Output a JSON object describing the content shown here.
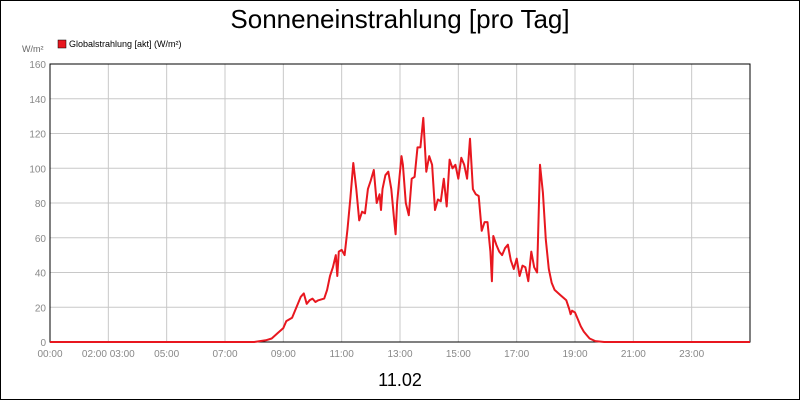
{
  "chart_data": {
    "type": "line",
    "title": "Sonneneinstrahlung [pro Tag]",
    "date_label": "11.02",
    "y_unit": "W/m²",
    "legend": [
      {
        "label": "Globalstrahlung [akt] (W/m²)",
        "color": "#e8171f"
      }
    ],
    "ylim": [
      0,
      160
    ],
    "yticks": [
      0,
      20,
      40,
      60,
      80,
      100,
      120,
      140,
      160
    ],
    "xlim": [
      0,
      24
    ],
    "xtick_labels": [
      "00:00",
      "02:00 03:00",
      "05:00",
      "07:00",
      "09:00",
      "11:00",
      "13:00",
      "15:00",
      "17:00",
      "19:00",
      "21:00",
      "23:00"
    ],
    "grid": true,
    "series": [
      {
        "name": "Globalstrahlung [akt] (W/m²)",
        "color": "#e8171f",
        "points": [
          [
            0.0,
            0
          ],
          [
            7.0,
            0
          ],
          [
            7.2,
            0.5
          ],
          [
            7.4,
            1
          ],
          [
            7.6,
            2
          ],
          [
            7.8,
            5
          ],
          [
            8.0,
            8
          ],
          [
            8.1,
            12
          ],
          [
            8.3,
            14
          ],
          [
            8.4,
            18
          ],
          [
            8.5,
            22
          ],
          [
            8.6,
            26
          ],
          [
            8.7,
            28
          ],
          [
            8.8,
            22
          ],
          [
            8.9,
            24
          ],
          [
            9.0,
            25
          ],
          [
            9.1,
            23
          ],
          [
            9.2,
            24
          ],
          [
            9.4,
            25
          ],
          [
            9.5,
            30
          ],
          [
            9.6,
            38
          ],
          [
            9.7,
            43
          ],
          [
            9.8,
            50
          ],
          [
            9.85,
            38
          ],
          [
            9.9,
            52
          ],
          [
            10.0,
            53
          ],
          [
            10.1,
            50
          ],
          [
            10.2,
            65
          ],
          [
            10.3,
            83
          ],
          [
            10.4,
            103
          ],
          [
            10.5,
            88
          ],
          [
            10.6,
            70
          ],
          [
            10.7,
            75
          ],
          [
            10.8,
            74
          ],
          [
            10.9,
            88
          ],
          [
            11.0,
            93
          ],
          [
            11.1,
            99
          ],
          [
            11.2,
            80
          ],
          [
            11.3,
            85
          ],
          [
            11.35,
            76
          ],
          [
            11.4,
            88
          ],
          [
            11.5,
            96
          ],
          [
            11.6,
            98
          ],
          [
            11.7,
            88
          ],
          [
            11.8,
            70
          ],
          [
            11.85,
            62
          ],
          [
            11.9,
            80
          ],
          [
            12.0,
            98
          ],
          [
            12.05,
            107
          ],
          [
            12.1,
            102
          ],
          [
            12.2,
            80
          ],
          [
            12.3,
            73
          ],
          [
            12.4,
            94
          ],
          [
            12.5,
            95
          ],
          [
            12.6,
            112
          ],
          [
            12.7,
            112
          ],
          [
            12.8,
            129
          ],
          [
            12.9,
            98
          ],
          [
            13.0,
            107
          ],
          [
            13.1,
            102
          ],
          [
            13.2,
            76
          ],
          [
            13.3,
            82
          ],
          [
            13.4,
            81
          ],
          [
            13.5,
            94
          ],
          [
            13.6,
            78
          ],
          [
            13.7,
            105
          ],
          [
            13.8,
            100
          ],
          [
            13.9,
            102
          ],
          [
            14.0,
            94
          ],
          [
            14.1,
            106
          ],
          [
            14.2,
            102
          ],
          [
            14.3,
            94
          ],
          [
            14.4,
            117
          ],
          [
            14.5,
            88
          ],
          [
            14.6,
            85
          ],
          [
            14.7,
            84
          ],
          [
            14.8,
            64
          ],
          [
            14.9,
            69
          ],
          [
            15.0,
            69
          ],
          [
            15.1,
            52
          ],
          [
            15.15,
            35
          ],
          [
            15.2,
            61
          ],
          [
            15.3,
            56
          ],
          [
            15.4,
            52
          ],
          [
            15.5,
            50
          ],
          [
            15.6,
            54
          ],
          [
            15.7,
            56
          ],
          [
            15.8,
            47
          ],
          [
            15.9,
            42
          ],
          [
            16.0,
            48
          ],
          [
            16.1,
            38
          ],
          [
            16.2,
            44
          ],
          [
            16.3,
            43
          ],
          [
            16.4,
            35
          ],
          [
            16.5,
            52
          ],
          [
            16.6,
            43
          ],
          [
            16.7,
            40
          ],
          [
            16.8,
            102
          ],
          [
            16.9,
            86
          ],
          [
            17.0,
            59
          ],
          [
            17.1,
            42
          ],
          [
            17.2,
            34
          ],
          [
            17.3,
            30
          ],
          [
            17.5,
            27
          ],
          [
            17.7,
            24
          ],
          [
            17.8,
            19
          ],
          [
            17.85,
            16
          ],
          [
            17.9,
            18
          ],
          [
            18.0,
            17
          ],
          [
            18.1,
            13
          ],
          [
            18.2,
            9
          ],
          [
            18.3,
            6
          ],
          [
            18.4,
            4
          ],
          [
            18.5,
            2
          ],
          [
            18.7,
            0.5
          ],
          [
            19.0,
            0
          ],
          [
            24.0,
            0
          ]
        ]
      }
    ]
  }
}
